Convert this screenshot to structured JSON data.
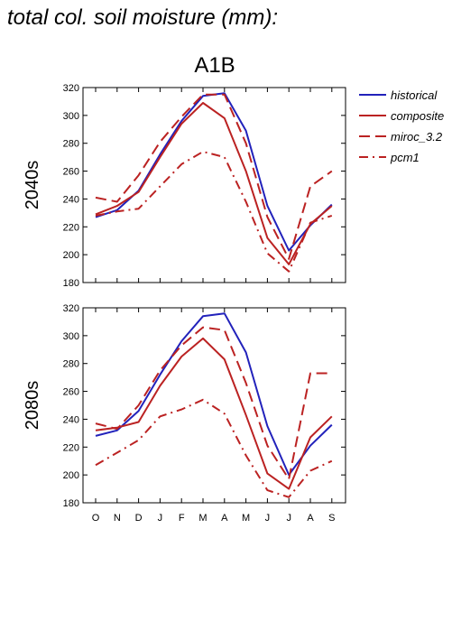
{
  "title": "total col. soil moisture (mm):",
  "chart_data": {
    "type": "line",
    "scenario": "A1B",
    "categories": [
      "O",
      "N",
      "D",
      "J",
      "F",
      "M",
      "A",
      "M",
      "J",
      "J",
      "A",
      "S"
    ],
    "ylim": [
      180,
      320
    ],
    "yticks": [
      180,
      200,
      220,
      240,
      260,
      280,
      300,
      320
    ],
    "legend_position": "right",
    "legend": [
      {
        "name": "historical",
        "color": "#2222bb",
        "style": "solid"
      },
      {
        "name": "composite",
        "color": "#bb2222",
        "style": "solid"
      },
      {
        "name": "miroc_3.2",
        "color": "#bb2222",
        "style": "dash"
      },
      {
        "name": "pcm1",
        "color": "#bb2222",
        "style": "dashdot"
      }
    ],
    "panels": [
      {
        "label": "2040s",
        "series": [
          {
            "name": "historical",
            "values": [
              227,
              232,
              246,
              272,
              296,
              314,
              316,
              289,
              235,
              203,
              221,
              236
            ]
          },
          {
            "name": "composite",
            "values": [
              229,
              235,
              245,
              270,
              294,
              309,
              298,
              260,
              212,
              193,
              222,
              235
            ]
          },
          {
            "name": "miroc_3.2",
            "values": [
              241,
              238,
              257,
              281,
              299,
              315,
              315,
              280,
              227,
              197,
              249,
              260
            ]
          },
          {
            "name": "pcm1",
            "values": [
              228,
              231,
              233,
              249,
              265,
              274,
              270,
              238,
              201,
              188,
              223,
              228
            ]
          }
        ]
      },
      {
        "label": "2080s",
        "series": [
          {
            "name": "historical",
            "values": [
              228,
              232,
              246,
              272,
              296,
              314,
              316,
              288,
              235,
              200,
              221,
              236
            ]
          },
          {
            "name": "composite",
            "values": [
              232,
              234,
              238,
              264,
              285,
              298,
              283,
              243,
              201,
              190,
              227,
              242
            ]
          },
          {
            "name": "miroc_3.2",
            "values": [
              237,
              233,
              250,
              275,
              293,
              306,
              304,
              266,
              221,
              197,
              273,
              273
            ]
          },
          {
            "name": "pcm1",
            "values": [
              207,
              216,
              225,
              242,
              247,
              254,
              244,
              214,
              189,
              184,
              203,
              210
            ]
          }
        ]
      }
    ]
  }
}
